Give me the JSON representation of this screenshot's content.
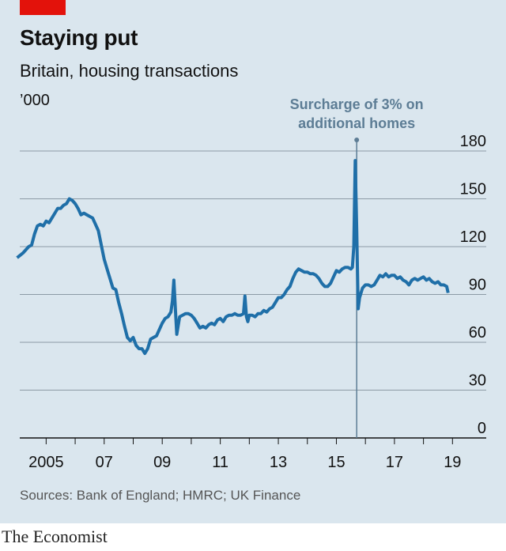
{
  "header": {
    "title": "Staying put",
    "subtitle": "Britain, housing transactions",
    "unit": "’000"
  },
  "footer": {
    "source": "Sources: Bank of England; HMRC; UK Finance",
    "brand": "The Economist"
  },
  "colors": {
    "background": "#dae6ee",
    "line": "#1f6fa8",
    "accent_tab": "#e3120b",
    "annotation": "#5d7d95",
    "grid": "#8c9aa5"
  },
  "chart_data": {
    "type": "line",
    "title": "Staying put",
    "subtitle": "Britain, housing transactions",
    "ylabel": "’000",
    "xlabel": "",
    "ylim": [
      0,
      180
    ],
    "xlim": [
      2005.0,
      2019.9
    ],
    "yticks": [
      0,
      30,
      60,
      90,
      120,
      150,
      180
    ],
    "xticks": [
      {
        "value": 2005,
        "label": "2005"
      },
      {
        "value": 2007,
        "label": "07"
      },
      {
        "value": 2009,
        "label": "09"
      },
      {
        "value": 2011,
        "label": "11"
      },
      {
        "value": 2013,
        "label": "13"
      },
      {
        "value": 2015,
        "label": "15"
      },
      {
        "value": 2017,
        "label": "17"
      },
      {
        "value": 2019,
        "label": "19"
      }
    ],
    "grid": true,
    "legend": "none",
    "annotations": [
      {
        "x": 2016.2,
        "text_lines": [
          "Surcharge of 3% on",
          "additional homes"
        ]
      }
    ],
    "series": [
      {
        "name": "",
        "points": [
          [
            2004.5,
            113
          ],
          [
            2004.7,
            116
          ],
          [
            2004.9,
            120
          ],
          [
            2005.0,
            121
          ],
          [
            2005.1,
            128
          ],
          [
            2005.2,
            133
          ],
          [
            2005.3,
            134
          ],
          [
            2005.4,
            133
          ],
          [
            2005.5,
            136
          ],
          [
            2005.6,
            135
          ],
          [
            2005.7,
            138
          ],
          [
            2005.8,
            141
          ],
          [
            2005.9,
            144
          ],
          [
            2006.0,
            144
          ],
          [
            2006.1,
            146
          ],
          [
            2006.2,
            147
          ],
          [
            2006.3,
            150
          ],
          [
            2006.4,
            149
          ],
          [
            2006.5,
            147
          ],
          [
            2006.6,
            144
          ],
          [
            2006.7,
            140
          ],
          [
            2006.8,
            141
          ],
          [
            2006.9,
            140
          ],
          [
            2007.0,
            139
          ],
          [
            2007.1,
            138
          ],
          [
            2007.2,
            134
          ],
          [
            2007.3,
            130
          ],
          [
            2007.4,
            121
          ],
          [
            2007.5,
            112
          ],
          [
            2007.6,
            106
          ],
          [
            2007.7,
            100
          ],
          [
            2007.8,
            94
          ],
          [
            2007.9,
            93
          ],
          [
            2008.0,
            85
          ],
          [
            2008.1,
            78
          ],
          [
            2008.2,
            70
          ],
          [
            2008.3,
            63
          ],
          [
            2008.4,
            61
          ],
          [
            2008.5,
            63
          ],
          [
            2008.6,
            58
          ],
          [
            2008.7,
            56
          ],
          [
            2008.8,
            56
          ],
          [
            2008.9,
            53
          ],
          [
            2009.0,
            56
          ],
          [
            2009.1,
            62
          ],
          [
            2009.2,
            63
          ],
          [
            2009.3,
            64
          ],
          [
            2009.4,
            68
          ],
          [
            2009.5,
            72
          ],
          [
            2009.6,
            75
          ],
          [
            2009.7,
            76
          ],
          [
            2009.8,
            79
          ],
          [
            2009.85,
            86
          ],
          [
            2009.9,
            99
          ],
          [
            2009.95,
            82
          ],
          [
            2010.0,
            65
          ],
          [
            2010.1,
            76
          ],
          [
            2010.2,
            77
          ],
          [
            2010.3,
            78
          ],
          [
            2010.4,
            78
          ],
          [
            2010.5,
            77
          ],
          [
            2010.6,
            75
          ],
          [
            2010.7,
            72
          ],
          [
            2010.8,
            69
          ],
          [
            2010.9,
            70
          ],
          [
            2011.0,
            69
          ],
          [
            2011.1,
            71
          ],
          [
            2011.2,
            72
          ],
          [
            2011.3,
            71
          ],
          [
            2011.4,
            74
          ],
          [
            2011.5,
            75
          ],
          [
            2011.6,
            73
          ],
          [
            2011.7,
            76
          ],
          [
            2011.8,
            77
          ],
          [
            2011.9,
            77
          ],
          [
            2012.0,
            78
          ],
          [
            2012.1,
            77
          ],
          [
            2012.2,
            77
          ],
          [
            2012.3,
            78
          ],
          [
            2012.35,
            89
          ],
          [
            2012.4,
            76
          ],
          [
            2012.45,
            73
          ],
          [
            2012.5,
            77
          ],
          [
            2012.6,
            77
          ],
          [
            2012.7,
            76
          ],
          [
            2012.8,
            78
          ],
          [
            2012.9,
            78
          ],
          [
            2013.0,
            80
          ],
          [
            2013.1,
            79
          ],
          [
            2013.2,
            81
          ],
          [
            2013.3,
            82
          ],
          [
            2013.4,
            85
          ],
          [
            2013.5,
            88
          ],
          [
            2013.6,
            88
          ],
          [
            2013.7,
            90
          ],
          [
            2013.8,
            93
          ],
          [
            2013.9,
            95
          ],
          [
            2014.0,
            100
          ],
          [
            2014.1,
            104
          ],
          [
            2014.2,
            106
          ],
          [
            2014.3,
            105
          ],
          [
            2014.4,
            104
          ],
          [
            2014.5,
            104
          ],
          [
            2014.6,
            103
          ],
          [
            2014.7,
            103
          ],
          [
            2014.8,
            102
          ],
          [
            2014.9,
            100
          ],
          [
            2015.0,
            97
          ],
          [
            2015.1,
            95
          ],
          [
            2015.2,
            95
          ],
          [
            2015.3,
            97
          ],
          [
            2015.4,
            101
          ],
          [
            2015.5,
            105
          ],
          [
            2015.6,
            104
          ],
          [
            2015.7,
            106
          ],
          [
            2015.8,
            107
          ],
          [
            2015.9,
            107
          ],
          [
            2016.0,
            106
          ],
          [
            2016.05,
            107
          ],
          [
            2016.1,
            120
          ],
          [
            2016.15,
            174
          ],
          [
            2016.2,
            130
          ],
          [
            2016.25,
            81
          ],
          [
            2016.3,
            88
          ],
          [
            2016.4,
            94
          ],
          [
            2016.5,
            96
          ],
          [
            2016.6,
            96
          ],
          [
            2016.7,
            95
          ],
          [
            2016.8,
            96
          ],
          [
            2016.9,
            99
          ],
          [
            2017.0,
            102
          ],
          [
            2017.1,
            101
          ],
          [
            2017.2,
            103
          ],
          [
            2017.3,
            101
          ],
          [
            2017.4,
            102
          ],
          [
            2017.5,
            102
          ],
          [
            2017.6,
            100
          ],
          [
            2017.7,
            101
          ],
          [
            2017.8,
            99
          ],
          [
            2017.9,
            98
          ],
          [
            2018.0,
            96
          ],
          [
            2018.1,
            99
          ],
          [
            2018.2,
            100
          ],
          [
            2018.3,
            99
          ],
          [
            2018.4,
            100
          ],
          [
            2018.5,
            101
          ],
          [
            2018.6,
            99
          ],
          [
            2018.7,
            100
          ],
          [
            2018.8,
            98
          ],
          [
            2018.9,
            97
          ],
          [
            2019.0,
            98
          ],
          [
            2019.1,
            96
          ],
          [
            2019.2,
            96
          ],
          [
            2019.3,
            95
          ],
          [
            2019.35,
            91
          ]
        ]
      }
    ]
  }
}
